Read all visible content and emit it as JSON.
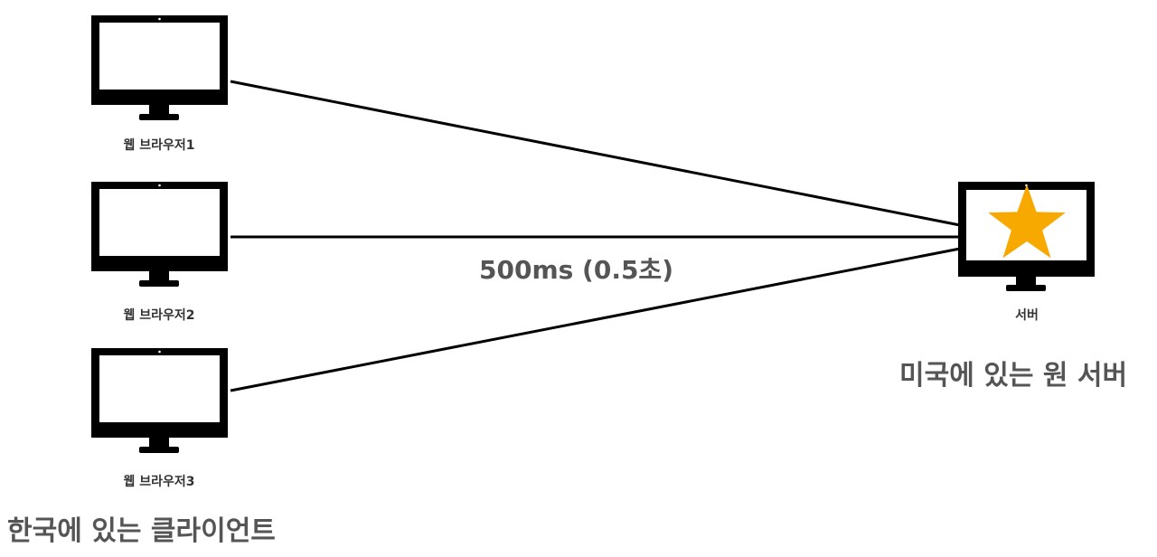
{
  "colors": {
    "line": "#000000",
    "monitor": "#000000",
    "screen": "#ffffff",
    "star": "#f7a900",
    "label_text": "#555555"
  },
  "clients": [
    {
      "label": "웹 브라우저1",
      "icon": "monitor-icon"
    },
    {
      "label": "웹 브라우저2",
      "icon": "monitor-icon"
    },
    {
      "label": "웹 브라우저3",
      "icon": "monitor-icon"
    }
  ],
  "server": {
    "label": "서버",
    "icon": "monitor-icon",
    "badge_icon": "star-icon",
    "location_label": "미국에 있는 원 서버"
  },
  "latency_label": "500ms (0.5초)",
  "clients_location_label": "한국에 있는 클라이언트"
}
